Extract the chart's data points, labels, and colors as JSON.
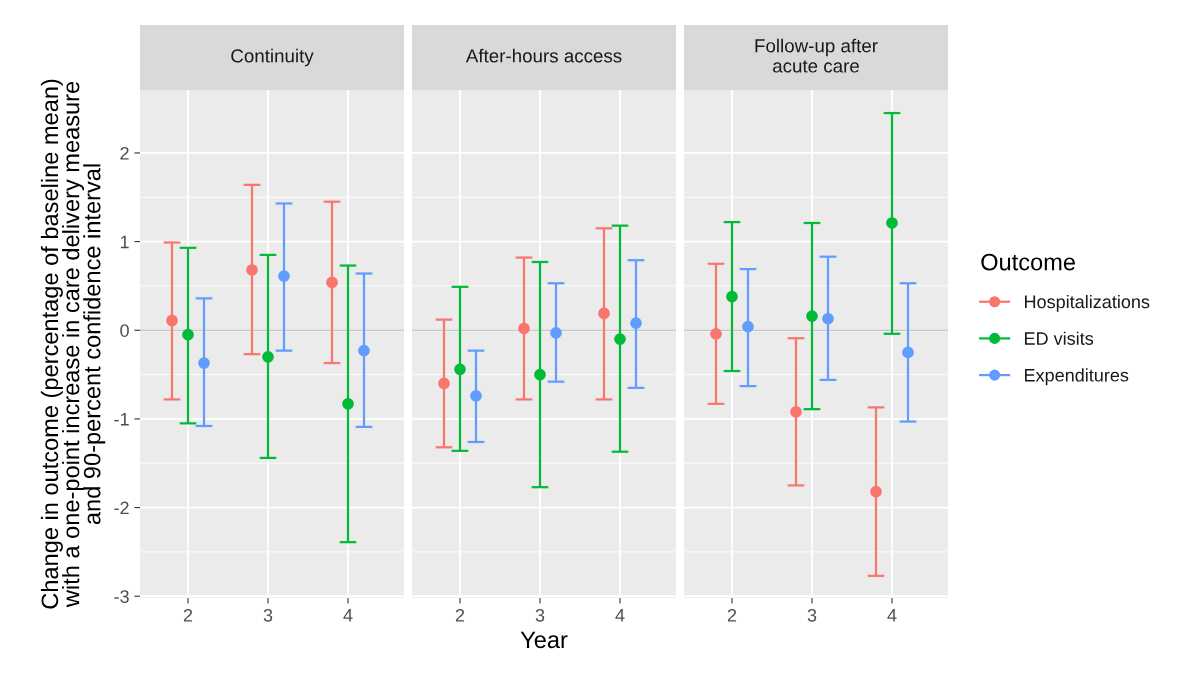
{
  "chart_data": [
    {
      "type": "scatter",
      "title": "Continuity",
      "legend_title": "Outcome",
      "legend": "right",
      "ylabel": "Change in outcome (percentage of baseline mean)\nwith a one-point increase in care delivery measure\nand 90-percent confidence interval",
      "categories": [
        "2",
        "3",
        "4"
      ],
      "ylim": [
        -3.02,
        2.71
      ],
      "yticks": [
        -3,
        -2,
        -1,
        0,
        1,
        2
      ],
      "grid": true,
      "marker": "circle",
      "ref_lines": [
        {
          "axis": "y",
          "value": 0,
          "color": "#c8c8c8"
        }
      ],
      "series": [
        {
          "name": "Hospitalizations",
          "color": "#f8766d",
          "values": [
            0.11,
            0.68,
            0.54
          ],
          "errors": [
            [
              -0.78,
              0.99
            ],
            [
              -0.27,
              1.64
            ],
            [
              -0.37,
              1.45
            ]
          ]
        },
        {
          "name": "ED visits",
          "color": "#00ba38",
          "values": [
            -0.05,
            -0.3,
            -0.83
          ],
          "errors": [
            [
              -1.05,
              0.93
            ],
            [
              -1.44,
              0.85
            ],
            [
              -2.39,
              0.73
            ]
          ]
        },
        {
          "name": "Expenditures",
          "color": "#619cff",
          "values": [
            -0.37,
            0.61,
            -0.23
          ],
          "errors": [
            [
              -1.08,
              0.36
            ],
            [
              -0.23,
              1.43
            ],
            [
              -1.09,
              0.64
            ]
          ]
        }
      ]
    },
    {
      "type": "scatter",
      "title": "After-hours access",
      "xlabel": "Year",
      "categories": [
        "2",
        "3",
        "4"
      ],
      "ylim": [
        -3.02,
        2.71
      ],
      "yticks": [
        -3,
        -2,
        -1,
        0,
        1,
        2
      ],
      "tick_labels": "x",
      "grid": true,
      "marker": "circle",
      "ref_lines": [
        {
          "axis": "y",
          "value": 0,
          "color": "#c8c8c8"
        }
      ],
      "series": [
        {
          "color": "#f8766d",
          "values": [
            -0.6,
            0.02,
            0.19
          ],
          "errors": [
            [
              -1.32,
              0.12
            ],
            [
              -0.78,
              0.82
            ],
            [
              -0.78,
              1.15
            ]
          ]
        },
        {
          "color": "#00ba38",
          "values": [
            -0.44,
            -0.5,
            -0.1
          ],
          "errors": [
            [
              -1.36,
              0.49
            ],
            [
              -1.77,
              0.77
            ],
            [
              -1.37,
              1.18
            ]
          ]
        },
        {
          "color": "#619cff",
          "values": [
            -0.74,
            -0.03,
            0.08
          ],
          "errors": [
            [
              -1.26,
              -0.23
            ],
            [
              -0.58,
              0.53
            ],
            [
              -0.65,
              0.79
            ]
          ]
        }
      ]
    },
    {
      "type": "scatter",
      "title": "Follow-up after\nacute care",
      "categories": [
        "2",
        "3",
        "4"
      ],
      "ylim": [
        -3.02,
        2.71
      ],
      "yticks": [
        -3,
        -2,
        -1,
        0,
        1,
        2
      ],
      "tick_labels": "x",
      "grid": true,
      "marker": "circle",
      "ref_lines": [
        {
          "axis": "y",
          "value": 0,
          "color": "#c8c8c8"
        }
      ],
      "series": [
        {
          "color": "#f8766d",
          "values": [
            -0.04,
            -0.92,
            -1.82
          ],
          "errors": [
            [
              -0.83,
              0.75
            ],
            [
              -1.75,
              -0.09
            ],
            [
              -2.77,
              -0.87
            ]
          ]
        },
        {
          "color": "#00ba38",
          "values": [
            0.38,
            0.16,
            1.21
          ],
          "errors": [
            [
              -0.46,
              1.22
            ],
            [
              -0.89,
              1.21
            ],
            [
              -0.04,
              2.45
            ]
          ]
        },
        {
          "color": "#619cff",
          "values": [
            0.04,
            0.13,
            -0.25
          ],
          "errors": [
            [
              -0.63,
              0.69
            ],
            [
              -0.56,
              0.83
            ],
            [
              -1.03,
              0.53
            ]
          ]
        }
      ]
    }
  ]
}
